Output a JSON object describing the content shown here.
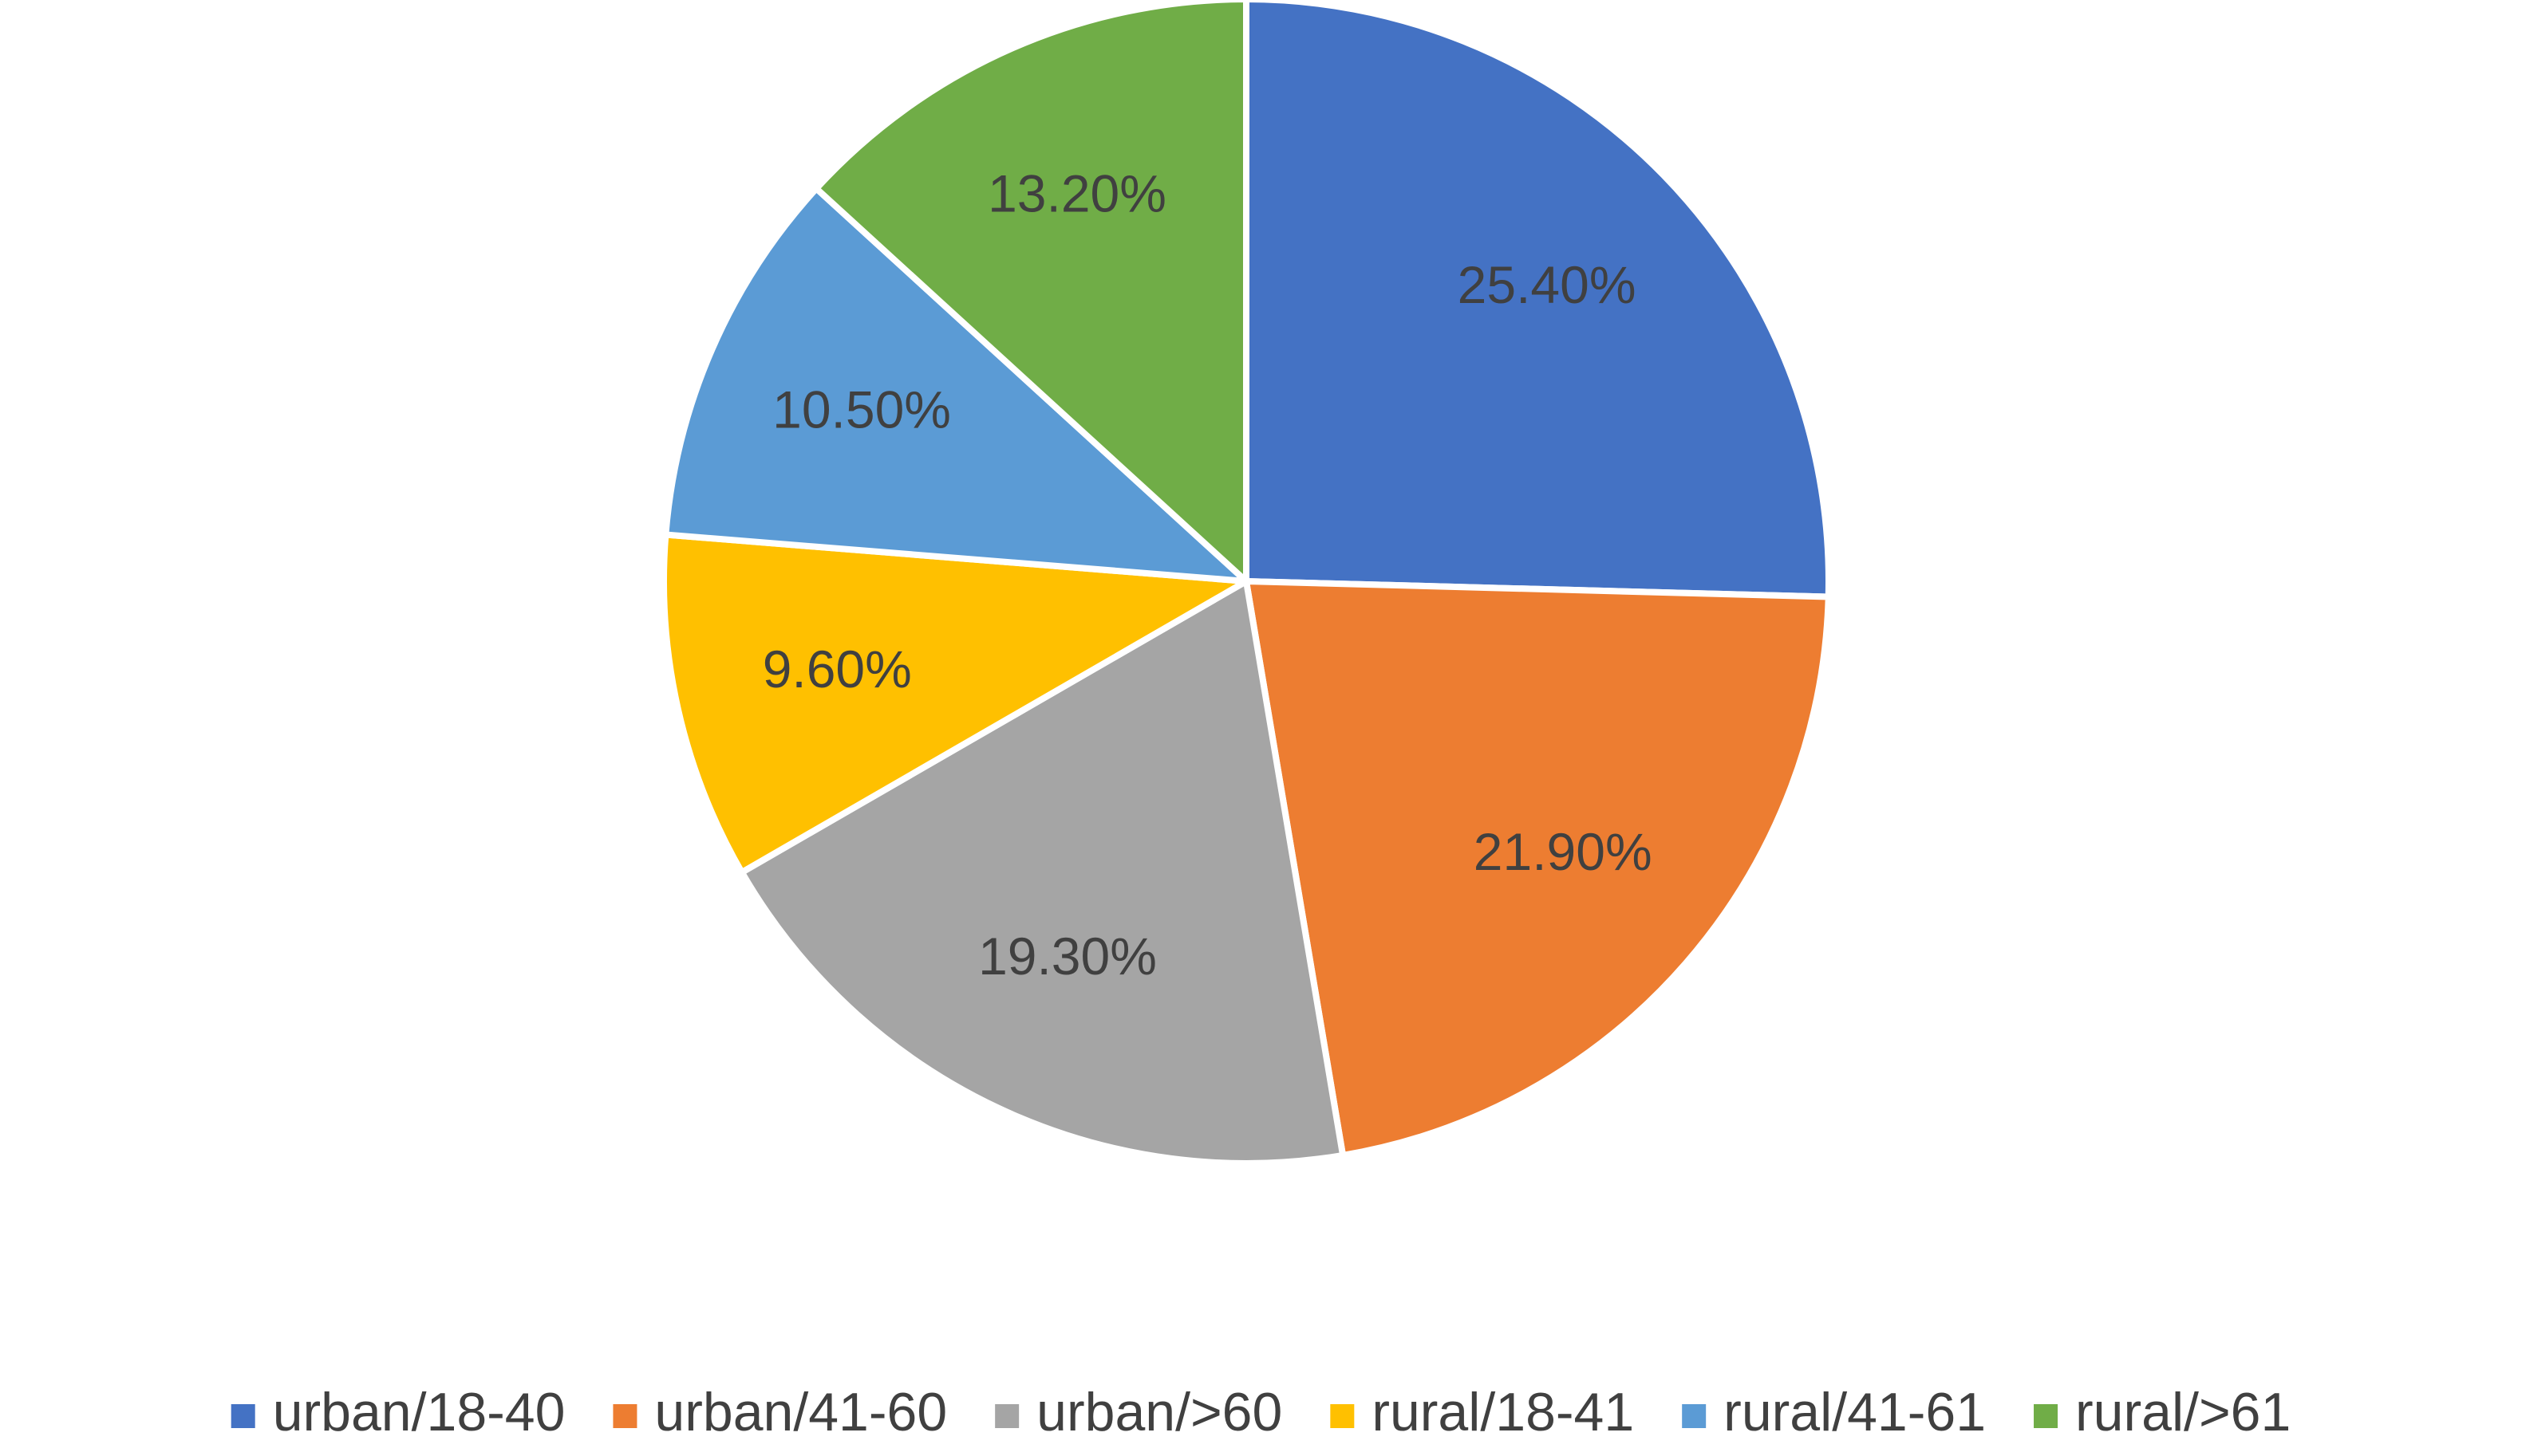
{
  "chart_data": {
    "type": "pie",
    "categories": [
      "urban/18-40",
      "urban/41-60",
      "urban/>60",
      "rural/18-41",
      "rural/41-61",
      "rural/>61"
    ],
    "values": [
      25.4,
      21.9,
      19.3,
      9.6,
      10.5,
      13.2
    ],
    "value_labels": [
      "25.40%",
      "21.90%",
      "19.30%",
      "9.60%",
      "10.50%",
      "13.20%"
    ],
    "colors": [
      "#4472c4",
      "#ed7d31",
      "#a5a5a5",
      "#ffc000",
      "#5b9bd5",
      "#70ad47"
    ],
    "legend": "bottom"
  }
}
